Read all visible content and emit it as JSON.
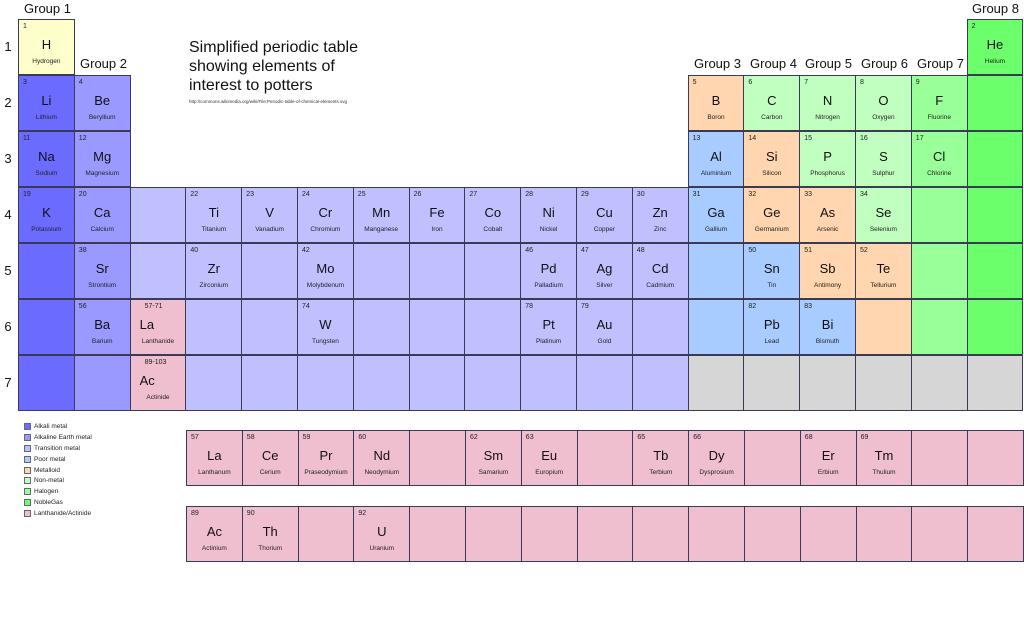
{
  "title": {
    "line1": "Simplified periodic table",
    "line2": "showing elements of",
    "line3": "interest to potters",
    "source_url": "http://commons.wikimedia.org/wiki/File:Periodic-table-of-chemical-elements.svg"
  },
  "colors": {
    "hydrogen": "#ffffcc",
    "alkali": "#6b6bff",
    "alkaline": "#9999ff",
    "transition": "#c0c0ff",
    "poor": "#a8ccff",
    "metalloid": "#ffd6b0",
    "nonmetal": "#c0ffc0",
    "halogen": "#99ff99",
    "noble": "#6bff6b",
    "lanthanide": "#f0bfcf",
    "unknown": "#d6d6d6"
  },
  "groups": [
    "Group 1",
    "Group 2",
    "Group 3",
    "Group 4",
    "Group 5",
    "Group 6",
    "Group 7",
    "Group 8"
  ],
  "periods": [
    "1",
    "2",
    "3",
    "4",
    "5",
    "6",
    "7"
  ],
  "legend": [
    {
      "label": "Alkali metal",
      "color": "#6b6bff"
    },
    {
      "label": "Alkaline Earth metal",
      "color": "#9999ff"
    },
    {
      "label": "Transition metal",
      "color": "#c0c0ff"
    },
    {
      "label": "Poor metal",
      "color": "#a8ccff"
    },
    {
      "label": "Metalloid",
      "color": "#ffd6b0"
    },
    {
      "label": "Non-metal",
      "color": "#c0ffc0"
    },
    {
      "label": "Halogen",
      "color": "#99ff99"
    },
    {
      "label": "NobleGas",
      "color": "#6bff6b"
    },
    {
      "label": "Lanthanide/Actinide",
      "color": "#f0bfcf"
    }
  ],
  "elements": [
    {
      "col": 0,
      "row": 0,
      "num": "1",
      "sym": "H",
      "name": "Hydrogen",
      "cat": "hydrogen"
    },
    {
      "col": 17,
      "row": 0,
      "num": "2",
      "sym": "He",
      "name": "Helium",
      "cat": "noble"
    },
    {
      "col": 0,
      "row": 1,
      "num": "3",
      "sym": "Li",
      "name": "Lithium",
      "cat": "alkali"
    },
    {
      "col": 1,
      "row": 1,
      "num": "4",
      "sym": "Be",
      "name": "Beryllium",
      "cat": "alkaline"
    },
    {
      "col": 12,
      "row": 1,
      "num": "5",
      "sym": "B",
      "name": "Boron",
      "cat": "metalloid"
    },
    {
      "col": 13,
      "row": 1,
      "num": "6",
      "sym": "C",
      "name": "Carbon",
      "cat": "nonmetal"
    },
    {
      "col": 14,
      "row": 1,
      "num": "7",
      "sym": "N",
      "name": "Nitrogen",
      "cat": "nonmetal"
    },
    {
      "col": 15,
      "row": 1,
      "num": "8",
      "sym": "O",
      "name": "Oxygen",
      "cat": "nonmetal"
    },
    {
      "col": 16,
      "row": 1,
      "num": "9",
      "sym": "F",
      "name": "Fluorine",
      "cat": "halogen"
    },
    {
      "col": 17,
      "row": 1,
      "num": "",
      "sym": "",
      "name": "",
      "cat": "noble"
    },
    {
      "col": 0,
      "row": 2,
      "num": "11",
      "sym": "Na",
      "name": "Sodium",
      "cat": "alkali"
    },
    {
      "col": 1,
      "row": 2,
      "num": "12",
      "sym": "Mg",
      "name": "Magnesium",
      "cat": "alkaline"
    },
    {
      "col": 12,
      "row": 2,
      "num": "13",
      "sym": "Al",
      "name": "Aluminium",
      "cat": "poor"
    },
    {
      "col": 13,
      "row": 2,
      "num": "14",
      "sym": "Si",
      "name": "Silicon",
      "cat": "metalloid"
    },
    {
      "col": 14,
      "row": 2,
      "num": "15",
      "sym": "P",
      "name": "Phosphorus",
      "cat": "nonmetal"
    },
    {
      "col": 15,
      "row": 2,
      "num": "16",
      "sym": "S",
      "name": "Sulphur",
      "cat": "nonmetal"
    },
    {
      "col": 16,
      "row": 2,
      "num": "17",
      "sym": "Cl",
      "name": "Chlorine",
      "cat": "halogen"
    },
    {
      "col": 17,
      "row": 2,
      "num": "",
      "sym": "",
      "name": "",
      "cat": "noble"
    },
    {
      "col": 0,
      "row": 3,
      "num": "19",
      "sym": "K",
      "name": "Potassium",
      "cat": "alkali"
    },
    {
      "col": 1,
      "row": 3,
      "num": "20",
      "sym": "Ca",
      "name": "Calcium",
      "cat": "alkaline"
    },
    {
      "col": 2,
      "row": 3,
      "num": "",
      "sym": "",
      "name": "",
      "cat": "transition"
    },
    {
      "col": 3,
      "row": 3,
      "num": "22",
      "sym": "Ti",
      "name": "Titanium",
      "cat": "transition"
    },
    {
      "col": 4,
      "row": 3,
      "num": "23",
      "sym": "V",
      "name": "Vanadium",
      "cat": "transition"
    },
    {
      "col": 5,
      "row": 3,
      "num": "24",
      "sym": "Cr",
      "name": "Chromium",
      "cat": "transition"
    },
    {
      "col": 6,
      "row": 3,
      "num": "25",
      "sym": "Mn",
      "name": "Manganese",
      "cat": "transition"
    },
    {
      "col": 7,
      "row": 3,
      "num": "26",
      "sym": "Fe",
      "name": "Iron",
      "cat": "transition"
    },
    {
      "col": 8,
      "row": 3,
      "num": "27",
      "sym": "Co",
      "name": "Cobalt",
      "cat": "transition"
    },
    {
      "col": 9,
      "row": 3,
      "num": "28",
      "sym": "Ni",
      "name": "Nickel",
      "cat": "transition"
    },
    {
      "col": 10,
      "row": 3,
      "num": "29",
      "sym": "Cu",
      "name": "Copper",
      "cat": "transition"
    },
    {
      "col": 11,
      "row": 3,
      "num": "30",
      "sym": "Zn",
      "name": "Zinc",
      "cat": "transition"
    },
    {
      "col": 12,
      "row": 3,
      "num": "31",
      "sym": "Ga",
      "name": "Gallium",
      "cat": "poor"
    },
    {
      "col": 13,
      "row": 3,
      "num": "32",
      "sym": "Ge",
      "name": "Germanium",
      "cat": "metalloid"
    },
    {
      "col": 14,
      "row": 3,
      "num": "33",
      "sym": "As",
      "name": "Arsenic",
      "cat": "metalloid"
    },
    {
      "col": 15,
      "row": 3,
      "num": "34",
      "sym": "Se",
      "name": "Selenium",
      "cat": "nonmetal"
    },
    {
      "col": 16,
      "row": 3,
      "num": "",
      "sym": "",
      "name": "",
      "cat": "halogen"
    },
    {
      "col": 17,
      "row": 3,
      "num": "",
      "sym": "",
      "name": "",
      "cat": "noble"
    },
    {
      "col": 0,
      "row": 4,
      "num": "",
      "sym": "",
      "name": "",
      "cat": "alkali"
    },
    {
      "col": 1,
      "row": 4,
      "num": "38",
      "sym": "Sr",
      "name": "Strontium",
      "cat": "alkaline"
    },
    {
      "col": 2,
      "row": 4,
      "num": "",
      "sym": "",
      "name": "",
      "cat": "transition"
    },
    {
      "col": 3,
      "row": 4,
      "num": "40",
      "sym": "Zr",
      "name": "Zirconium",
      "cat": "transition"
    },
    {
      "col": 4,
      "row": 4,
      "num": "",
      "sym": "",
      "name": "",
      "cat": "transition"
    },
    {
      "col": 5,
      "row": 4,
      "num": "42",
      "sym": "Mo",
      "name": "Molybdenum",
      "cat": "transition"
    },
    {
      "col": 6,
      "row": 4,
      "num": "",
      "sym": "",
      "name": "",
      "cat": "transition"
    },
    {
      "col": 7,
      "row": 4,
      "num": "",
      "sym": "",
      "name": "",
      "cat": "transition"
    },
    {
      "col": 8,
      "row": 4,
      "num": "",
      "sym": "",
      "name": "",
      "cat": "transition"
    },
    {
      "col": 9,
      "row": 4,
      "num": "46",
      "sym": "Pd",
      "name": "Palladium",
      "cat": "transition"
    },
    {
      "col": 10,
      "row": 4,
      "num": "47",
      "sym": "Ag",
      "name": "Silver",
      "cat": "transition"
    },
    {
      "col": 11,
      "row": 4,
      "num": "48",
      "sym": "Cd",
      "name": "Cadmium",
      "cat": "transition"
    },
    {
      "col": 12,
      "row": 4,
      "num": "",
      "sym": "",
      "name": "",
      "cat": "poor"
    },
    {
      "col": 13,
      "row": 4,
      "num": "50",
      "sym": "Sn",
      "name": "Tin",
      "cat": "poor"
    },
    {
      "col": 14,
      "row": 4,
      "num": "51",
      "sym": "Sb",
      "name": "Antimony",
      "cat": "metalloid"
    },
    {
      "col": 15,
      "row": 4,
      "num": "52",
      "sym": "Te",
      "name": "Tellurium",
      "cat": "metalloid"
    },
    {
      "col": 16,
      "row": 4,
      "num": "",
      "sym": "",
      "name": "",
      "cat": "halogen"
    },
    {
      "col": 17,
      "row": 4,
      "num": "",
      "sym": "",
      "name": "",
      "cat": "noble"
    },
    {
      "col": 0,
      "row": 5,
      "num": "",
      "sym": "",
      "name": "",
      "cat": "alkali"
    },
    {
      "col": 1,
      "row": 5,
      "num": "56",
      "sym": "Ba",
      "name": "Barium",
      "cat": "alkaline"
    },
    {
      "col": 2,
      "row": 5,
      "num": "57-71",
      "sym": "La",
      "name": "Lanthanide",
      "cat": "lanthanide",
      "lan": true
    },
    {
      "col": 3,
      "row": 5,
      "num": "",
      "sym": "",
      "name": "",
      "cat": "transition"
    },
    {
      "col": 4,
      "row": 5,
      "num": "",
      "sym": "",
      "name": "",
      "cat": "transition"
    },
    {
      "col": 5,
      "row": 5,
      "num": "74",
      "sym": "W",
      "name": "Tungsten",
      "cat": "transition"
    },
    {
      "col": 6,
      "row": 5,
      "num": "",
      "sym": "",
      "name": "",
      "cat": "transition"
    },
    {
      "col": 7,
      "row": 5,
      "num": "",
      "sym": "",
      "name": "",
      "cat": "transition"
    },
    {
      "col": 8,
      "row": 5,
      "num": "",
      "sym": "",
      "name": "",
      "cat": "transition"
    },
    {
      "col": 9,
      "row": 5,
      "num": "78",
      "sym": "Pt",
      "name": "Platinum",
      "cat": "transition"
    },
    {
      "col": 10,
      "row": 5,
      "num": "79",
      "sym": "Au",
      "name": "Gold",
      "cat": "transition"
    },
    {
      "col": 11,
      "row": 5,
      "num": "",
      "sym": "",
      "name": "",
      "cat": "transition"
    },
    {
      "col": 12,
      "row": 5,
      "num": "",
      "sym": "",
      "name": "",
      "cat": "poor"
    },
    {
      "col": 13,
      "row": 5,
      "num": "82",
      "sym": "Pb",
      "name": "Lead",
      "cat": "poor"
    },
    {
      "col": 14,
      "row": 5,
      "num": "83",
      "sym": "Bi",
      "name": "Bismuth",
      "cat": "poor"
    },
    {
      "col": 15,
      "row": 5,
      "num": "",
      "sym": "",
      "name": "",
      "cat": "metalloid"
    },
    {
      "col": 16,
      "row": 5,
      "num": "",
      "sym": "",
      "name": "",
      "cat": "halogen"
    },
    {
      "col": 17,
      "row": 5,
      "num": "",
      "sym": "",
      "name": "",
      "cat": "noble"
    },
    {
      "col": 0,
      "row": 6,
      "num": "",
      "sym": "",
      "name": "",
      "cat": "alkali"
    },
    {
      "col": 1,
      "row": 6,
      "num": "",
      "sym": "",
      "name": "",
      "cat": "alkaline"
    },
    {
      "col": 2,
      "row": 6,
      "num": "89-103",
      "sym": "Ac",
      "name": "Actinide",
      "cat": "lanthanide",
      "lan": true
    },
    {
      "col": 3,
      "row": 6,
      "num": "",
      "sym": "",
      "name": "",
      "cat": "transition"
    },
    {
      "col": 4,
      "row": 6,
      "num": "",
      "sym": "",
      "name": "",
      "cat": "transition"
    },
    {
      "col": 5,
      "row": 6,
      "num": "",
      "sym": "",
      "name": "",
      "cat": "transition"
    },
    {
      "col": 6,
      "row": 6,
      "num": "",
      "sym": "",
      "name": "",
      "cat": "transition"
    },
    {
      "col": 7,
      "row": 6,
      "num": "",
      "sym": "",
      "name": "",
      "cat": "transition"
    },
    {
      "col": 8,
      "row": 6,
      "num": "",
      "sym": "",
      "name": "",
      "cat": "transition"
    },
    {
      "col": 9,
      "row": 6,
      "num": "",
      "sym": "",
      "name": "",
      "cat": "transition"
    },
    {
      "col": 10,
      "row": 6,
      "num": "",
      "sym": "",
      "name": "",
      "cat": "transition"
    },
    {
      "col": 11,
      "row": 6,
      "num": "",
      "sym": "",
      "name": "",
      "cat": "transition"
    },
    {
      "col": 12,
      "row": 6,
      "num": "",
      "sym": "",
      "name": "",
      "cat": "unknown"
    },
    {
      "col": 13,
      "row": 6,
      "num": "",
      "sym": "",
      "name": "",
      "cat": "unknown"
    },
    {
      "col": 14,
      "row": 6,
      "num": "",
      "sym": "",
      "name": "",
      "cat": "unknown"
    },
    {
      "col": 15,
      "row": 6,
      "num": "",
      "sym": "",
      "name": "",
      "cat": "unknown"
    },
    {
      "col": 16,
      "row": 6,
      "num": "",
      "sym": "",
      "name": "",
      "cat": "unknown"
    },
    {
      "col": 17,
      "row": 6,
      "num": "",
      "sym": "",
      "name": "",
      "cat": "unknown"
    }
  ],
  "lanthanides": [
    {
      "num": "57",
      "sym": "La",
      "name": "Lanthanum"
    },
    {
      "num": "58",
      "sym": "Ce",
      "name": "Cerium"
    },
    {
      "num": "59",
      "sym": "Pr",
      "name": "Praseodymium"
    },
    {
      "num": "60",
      "sym": "Nd",
      "name": "Neodymium"
    },
    {
      "num": "",
      "sym": "",
      "name": ""
    },
    {
      "num": "62",
      "sym": "Sm",
      "name": "Samarium"
    },
    {
      "num": "63",
      "sym": "Eu",
      "name": "Europium"
    },
    {
      "num": "",
      "sym": "",
      "name": ""
    },
    {
      "num": "65",
      "sym": "Tb",
      "name": "Terbium"
    },
    {
      "num": "66",
      "sym": "Dy",
      "name": "Dysprosium"
    },
    {
      "num": "",
      "sym": "",
      "name": ""
    },
    {
      "num": "68",
      "sym": "Er",
      "name": "Erbium"
    },
    {
      "num": "69",
      "sym": "Tm",
      "name": "Thulium"
    },
    {
      "num": "",
      "sym": "",
      "name": ""
    },
    {
      "num": "",
      "sym": "",
      "name": ""
    }
  ],
  "actinides": [
    {
      "num": "89",
      "sym": "Ac",
      "name": "Actinium"
    },
    {
      "num": "90",
      "sym": "Th",
      "name": "Thorium"
    },
    {
      "num": "",
      "sym": "",
      "name": ""
    },
    {
      "num": "92",
      "sym": "U",
      "name": "Uranium"
    },
    {
      "num": "",
      "sym": "",
      "name": ""
    },
    {
      "num": "",
      "sym": "",
      "name": ""
    },
    {
      "num": "",
      "sym": "",
      "name": ""
    },
    {
      "num": "",
      "sym": "",
      "name": ""
    },
    {
      "num": "",
      "sym": "",
      "name": ""
    },
    {
      "num": "",
      "sym": "",
      "name": ""
    },
    {
      "num": "",
      "sym": "",
      "name": ""
    },
    {
      "num": "",
      "sym": "",
      "name": ""
    },
    {
      "num": "",
      "sym": "",
      "name": ""
    },
    {
      "num": "",
      "sym": "",
      "name": ""
    },
    {
      "num": "",
      "sym": "",
      "name": ""
    }
  ]
}
